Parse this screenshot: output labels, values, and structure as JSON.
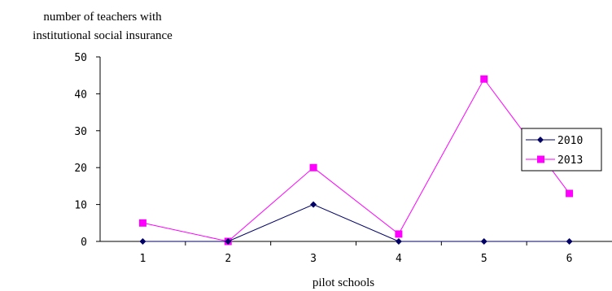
{
  "chart_data": {
    "type": "line",
    "ylabel": [
      "number of teachers with",
      "institutional social insurance"
    ],
    "xlabel": "pilot schools",
    "categories": [
      "1",
      "2",
      "3",
      "4",
      "5",
      "6"
    ],
    "ylim": [
      0,
      50
    ],
    "yticks": [
      "0",
      "10",
      "20",
      "30",
      "40",
      "50"
    ],
    "legend_position": "right",
    "grid": false,
    "series": [
      {
        "name": "2010",
        "color": "#000066",
        "marker": "diamond",
        "values": [
          0,
          0,
          10,
          0,
          0,
          0
        ]
      },
      {
        "name": "2013",
        "color": "#ff00ff",
        "marker": "square",
        "values": [
          5,
          0,
          20,
          2,
          44,
          13
        ]
      }
    ]
  }
}
